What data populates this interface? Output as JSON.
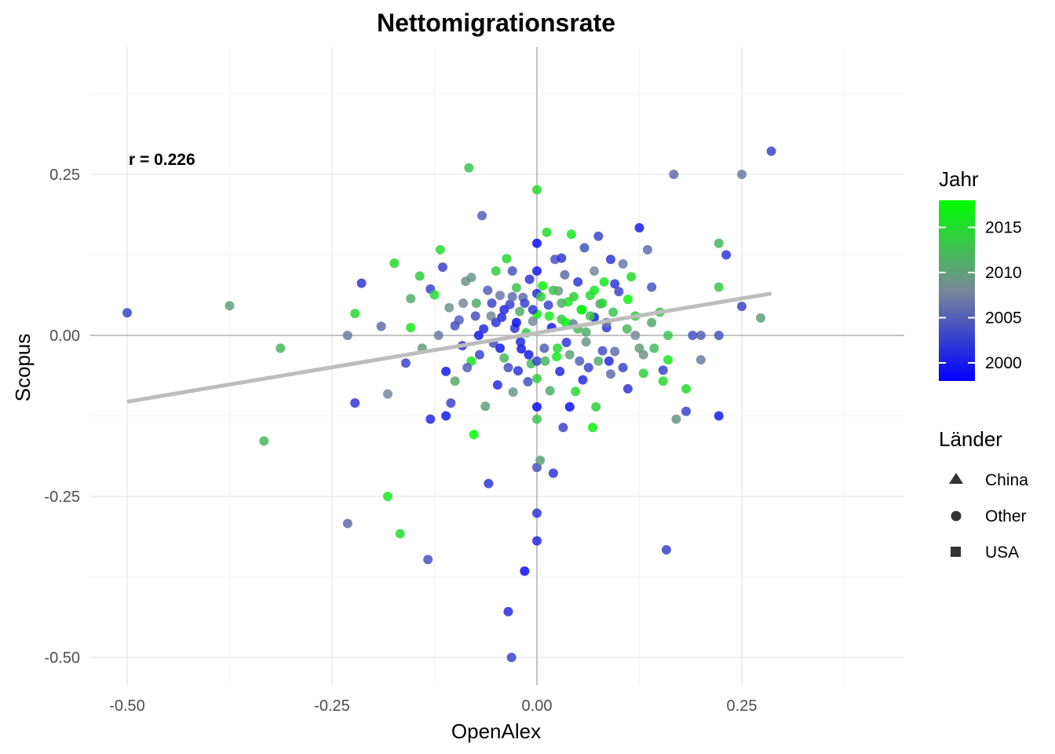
{
  "chart_data": {
    "type": "scatter",
    "title": "Nettomigrationsrate",
    "xlabel": "OpenAlex",
    "ylabel": "Scopus",
    "xlim": [
      -0.55,
      0.45
    ],
    "ylim": [
      -0.54,
      0.38
    ],
    "x_ticks": [
      -0.5,
      -0.25,
      0.0,
      0.25
    ],
    "y_ticks": [
      0.25,
      0.0,
      -0.25,
      -0.5
    ],
    "x_tick_labels": [
      "-0.50",
      "-0.25",
      "0.00",
      "0.25"
    ],
    "y_tick_labels": [
      "0.25",
      "0.00",
      "-0.25",
      "-0.50"
    ],
    "grid": true,
    "annotation": "r = 0.226",
    "trend_line": {
      "x": [
        -0.5,
        0.286
      ],
      "y": [
        -0.103,
        0.065
      ]
    },
    "color_legend": {
      "title": "Jahr",
      "ticks": [
        2000,
        2005,
        2010,
        2015
      ],
      "range": [
        1998,
        2018
      ],
      "low_color": "#0000ff",
      "mid_color": "#778899",
      "high_color": "#00ff00"
    },
    "shape_legend": {
      "title": "Länder",
      "items": [
        {
          "label": "China",
          "shape": "triangle"
        },
        {
          "label": "Other",
          "shape": "circle"
        },
        {
          "label": "USA",
          "shape": "square"
        }
      ]
    },
    "points": [
      {
        "x": -0.5,
        "y": 0.035,
        "year": 2003
      },
      {
        "x": -0.375,
        "y": 0.046,
        "year": 2010
      },
      {
        "x": -0.333,
        "y": -0.164,
        "year": 2012
      },
      {
        "x": -0.313,
        "y": -0.02,
        "year": 2012
      },
      {
        "x": -0.231,
        "y": -0.292,
        "year": 2006
      },
      {
        "x": -0.231,
        "y": 0.0,
        "year": 2007
      },
      {
        "x": -0.222,
        "y": 0.034,
        "year": 2015
      },
      {
        "x": -0.222,
        "y": -0.105,
        "year": 2002
      },
      {
        "x": -0.214,
        "y": 0.081,
        "year": 2002
      },
      {
        "x": -0.182,
        "y": -0.25,
        "year": 2016
      },
      {
        "x": -0.182,
        "y": -0.091,
        "year": 2008
      },
      {
        "x": -0.19,
        "y": 0.014,
        "year": 2006
      },
      {
        "x": -0.174,
        "y": 0.112,
        "year": 2015
      },
      {
        "x": -0.167,
        "y": -0.308,
        "year": 2015
      },
      {
        "x": -0.16,
        "y": -0.043,
        "year": 2003
      },
      {
        "x": -0.154,
        "y": 0.057,
        "year": 2011
      },
      {
        "x": -0.154,
        "y": 0.012,
        "year": 2016
      },
      {
        "x": -0.143,
        "y": 0.092,
        "year": 2014
      },
      {
        "x": -0.133,
        "y": -0.348,
        "year": 2004
      },
      {
        "x": -0.13,
        "y": 0.072,
        "year": 2003
      },
      {
        "x": -0.13,
        "y": -0.13,
        "year": 2001
      },
      {
        "x": -0.125,
        "y": 0.063,
        "year": 2015
      },
      {
        "x": -0.118,
        "y": 0.133,
        "year": 2015
      },
      {
        "x": -0.115,
        "y": 0.106,
        "year": 2003
      },
      {
        "x": -0.111,
        "y": -0.056,
        "year": 2000
      },
      {
        "x": -0.111,
        "y": -0.125,
        "year": 2000
      },
      {
        "x": -0.107,
        "y": 0.043,
        "year": 2009
      },
      {
        "x": -0.105,
        "y": -0.105,
        "year": 2003
      },
      {
        "x": -0.1,
        "y": -0.071,
        "year": 2011
      },
      {
        "x": -0.095,
        "y": 0.024,
        "year": 2005
      },
      {
        "x": -0.091,
        "y": -0.016,
        "year": 2002
      },
      {
        "x": -0.087,
        "y": 0.084,
        "year": 2009
      },
      {
        "x": -0.083,
        "y": 0.26,
        "year": 2013
      },
      {
        "x": -0.08,
        "y": -0.04,
        "year": 2016
      },
      {
        "x": -0.077,
        "y": -0.154,
        "year": 2018
      },
      {
        "x": -0.074,
        "y": 0.05,
        "year": 2011
      },
      {
        "x": -0.071,
        "y": 0.0,
        "year": 2000
      },
      {
        "x": -0.067,
        "y": 0.186,
        "year": 2005
      },
      {
        "x": -0.063,
        "y": -0.11,
        "year": 2010
      },
      {
        "x": -0.059,
        "y": -0.23,
        "year": 2002
      },
      {
        "x": -0.056,
        "y": 0.03,
        "year": 2008
      },
      {
        "x": -0.053,
        "y": -0.012,
        "year": 2004
      },
      {
        "x": -0.05,
        "y": 0.1,
        "year": 2014
      },
      {
        "x": -0.048,
        "y": -0.077,
        "year": 2001
      },
      {
        "x": -0.045,
        "y": 0.062,
        "year": 2007
      },
      {
        "x": -0.043,
        "y": 0.028,
        "year": 2001
      },
      {
        "x": -0.04,
        "y": -0.035,
        "year": 2012
      },
      {
        "x": -0.037,
        "y": 0.119,
        "year": 2015
      },
      {
        "x": -0.035,
        "y": -0.429,
        "year": 2001
      },
      {
        "x": -0.033,
        "y": 0.048,
        "year": 2003
      },
      {
        "x": -0.031,
        "y": -0.5,
        "year": 2003
      },
      {
        "x": -0.029,
        "y": -0.088,
        "year": 2009
      },
      {
        "x": -0.027,
        "y": 0.011,
        "year": 2002
      },
      {
        "x": -0.025,
        "y": 0.074,
        "year": 2013
      },
      {
        "x": -0.023,
        "y": -0.055,
        "year": 2002
      },
      {
        "x": -0.021,
        "y": 0.037,
        "year": 2011
      },
      {
        "x": -0.019,
        "y": -0.021,
        "year": 2000
      },
      {
        "x": -0.017,
        "y": 0.059,
        "year": 2006
      },
      {
        "x": -0.015,
        "y": -0.366,
        "year": 1999
      },
      {
        "x": -0.013,
        "y": 0.004,
        "year": 2014
      },
      {
        "x": -0.011,
        "y": -0.072,
        "year": 2004
      },
      {
        "x": -0.009,
        "y": 0.087,
        "year": 2002
      },
      {
        "x": -0.007,
        "y": -0.044,
        "year": 2012
      },
      {
        "x": -0.005,
        "y": 0.022,
        "year": 2008
      },
      {
        "x": 0.0,
        "y": 0.143,
        "year": 1999
      },
      {
        "x": 0.0,
        "y": 0.226,
        "year": 2015
      },
      {
        "x": 0.0,
        "y": -0.205,
        "year": 2004
      },
      {
        "x": 0.0,
        "y": -0.276,
        "year": 2002
      },
      {
        "x": 0.0,
        "y": -0.319,
        "year": 2001
      },
      {
        "x": 0.0,
        "y": -0.111,
        "year": 1999
      },
      {
        "x": 0.0,
        "y": -0.13,
        "year": 2013
      },
      {
        "x": 0.0,
        "y": 0.1,
        "year": 2000
      },
      {
        "x": 0.0,
        "y": 0.065,
        "year": 2001
      },
      {
        "x": 0.0,
        "y": -0.067,
        "year": 2014
      },
      {
        "x": 0.0,
        "y": 0.033,
        "year": 2017
      },
      {
        "x": 0.0,
        "y": -0.04,
        "year": 2003
      },
      {
        "x": 0.004,
        "y": -0.194,
        "year": 2010
      },
      {
        "x": 0.007,
        "y": 0.077,
        "year": 2017
      },
      {
        "x": 0.009,
        "y": -0.02,
        "year": 2005
      },
      {
        "x": 0.012,
        "y": 0.16,
        "year": 2015
      },
      {
        "x": 0.014,
        "y": 0.047,
        "year": 2003
      },
      {
        "x": 0.016,
        "y": -0.086,
        "year": 2011
      },
      {
        "x": 0.018,
        "y": 0.012,
        "year": 2000
      },
      {
        "x": 0.02,
        "y": -0.214,
        "year": 2002
      },
      {
        "x": 0.022,
        "y": 0.118,
        "year": 2004
      },
      {
        "x": 0.024,
        "y": -0.033,
        "year": 2016
      },
      {
        "x": 0.026,
        "y": 0.069,
        "year": 2009
      },
      {
        "x": 0.028,
        "y": -0.056,
        "year": 2001
      },
      {
        "x": 0.03,
        "y": 0.025,
        "year": 2013
      },
      {
        "x": 0.032,
        "y": -0.143,
        "year": 2003
      },
      {
        "x": 0.034,
        "y": 0.094,
        "year": 2006
      },
      {
        "x": 0.036,
        "y": -0.011,
        "year": 2002
      },
      {
        "x": 0.038,
        "y": 0.052,
        "year": 2016
      },
      {
        "x": 0.04,
        "y": -0.111,
        "year": 1999
      },
      {
        "x": 0.042,
        "y": 0.157,
        "year": 2016
      },
      {
        "x": 0.044,
        "y": 0.018,
        "year": 2007
      },
      {
        "x": 0.047,
        "y": -0.087,
        "year": 2015
      },
      {
        "x": 0.05,
        "y": 0.083,
        "year": 2002
      },
      {
        "x": 0.052,
        "y": -0.04,
        "year": 2005
      },
      {
        "x": 0.054,
        "y": 0.04,
        "year": 2012
      },
      {
        "x": 0.056,
        "y": -0.069,
        "year": 2001
      },
      {
        "x": 0.058,
        "y": 0.136,
        "year": 2004
      },
      {
        "x": 0.06,
        "y": 0.005,
        "year": 2011
      },
      {
        "x": 0.063,
        "y": -0.05,
        "year": 2003
      },
      {
        "x": 0.065,
        "y": 0.062,
        "year": 2015
      },
      {
        "x": 0.068,
        "y": -0.143,
        "year": 2017
      },
      {
        "x": 0.07,
        "y": 0.028,
        "year": 2000
      },
      {
        "x": 0.072,
        "y": -0.111,
        "year": 2014
      },
      {
        "x": 0.075,
        "y": 0.154,
        "year": 2003
      },
      {
        "x": 0.077,
        "y": 0.049,
        "year": 2009
      },
      {
        "x": 0.08,
        "y": -0.024,
        "year": 2004
      },
      {
        "x": 0.082,
        "y": 0.083,
        "year": 2016
      },
      {
        "x": 0.085,
        "y": 0.012,
        "year": 2002
      },
      {
        "x": 0.088,
        "y": -0.04,
        "year": 2001
      },
      {
        "x": 0.09,
        "y": 0.118,
        "year": 2002
      },
      {
        "x": 0.093,
        "y": 0.036,
        "year": 2013
      },
      {
        "x": 0.095,
        "y": -0.025,
        "year": 2006
      },
      {
        "x": 0.1,
        "y": 0.068,
        "year": 2003
      },
      {
        "x": 0.105,
        "y": 0.111,
        "year": 2007
      },
      {
        "x": 0.105,
        "y": -0.05,
        "year": 2003
      },
      {
        "x": 0.111,
        "y": 0.056,
        "year": 2017
      },
      {
        "x": 0.111,
        "y": -0.083,
        "year": 2002
      },
      {
        "x": 0.115,
        "y": 0.091,
        "year": 2015
      },
      {
        "x": 0.12,
        "y": 0.0,
        "year": 2008
      },
      {
        "x": 0.125,
        "y": 0.167,
        "year": 2000
      },
      {
        "x": 0.125,
        "y": -0.02,
        "year": 2010
      },
      {
        "x": 0.13,
        "y": -0.059,
        "year": 2014
      },
      {
        "x": 0.135,
        "y": 0.133,
        "year": 2006
      },
      {
        "x": 0.14,
        "y": 0.075,
        "year": 2004
      },
      {
        "x": 0.143,
        "y": -0.02,
        "year": 2012
      },
      {
        "x": 0.15,
        "y": 0.036,
        "year": 2013
      },
      {
        "x": 0.154,
        "y": -0.071,
        "year": 2015
      },
      {
        "x": 0.154,
        "y": -0.054,
        "year": 2003
      },
      {
        "x": 0.158,
        "y": -0.333,
        "year": 2003
      },
      {
        "x": 0.16,
        "y": -0.038,
        "year": 2016
      },
      {
        "x": 0.16,
        "y": 0.0,
        "year": 2013
      },
      {
        "x": 0.167,
        "y": 0.25,
        "year": 2006
      },
      {
        "x": 0.17,
        "y": -0.13,
        "year": 2009
      },
      {
        "x": 0.182,
        "y": -0.118,
        "year": 2003
      },
      {
        "x": 0.182,
        "y": -0.083,
        "year": 2015
      },
      {
        "x": 0.19,
        "y": 0.0,
        "year": 2004
      },
      {
        "x": 0.2,
        "y": -0.038,
        "year": 2007
      },
      {
        "x": 0.2,
        "y": 0.0,
        "year": 2005
      },
      {
        "x": 0.222,
        "y": 0.143,
        "year": 2012
      },
      {
        "x": 0.222,
        "y": 0.075,
        "year": 2013
      },
      {
        "x": 0.222,
        "y": -0.125,
        "year": 2000
      },
      {
        "x": 0.222,
        "y": 0.0,
        "year": 2004
      },
      {
        "x": 0.231,
        "y": 0.125,
        "year": 2002
      },
      {
        "x": 0.25,
        "y": 0.25,
        "year": 2007
      },
      {
        "x": 0.25,
        "y": 0.045,
        "year": 2003
      },
      {
        "x": 0.273,
        "y": 0.027,
        "year": 2010
      },
      {
        "x": 0.286,
        "y": 0.286,
        "year": 2003
      },
      {
        "x": -0.06,
        "y": 0.07,
        "year": 2005
      },
      {
        "x": -0.055,
        "y": 0.05,
        "year": 2003
      },
      {
        "x": -0.05,
        "y": 0.02,
        "year": 2002
      },
      {
        "x": -0.045,
        "y": -0.02,
        "year": 2000
      },
      {
        "x": -0.04,
        "y": 0.04,
        "year": 2001
      },
      {
        "x": -0.035,
        "y": -0.05,
        "year": 2004
      },
      {
        "x": -0.03,
        "y": 0.06,
        "year": 2006
      },
      {
        "x": -0.025,
        "y": 0.02,
        "year": 1999
      },
      {
        "x": -0.02,
        "y": -0.01,
        "year": 2001
      },
      {
        "x": -0.015,
        "y": 0.05,
        "year": 2003
      },
      {
        "x": -0.01,
        "y": -0.03,
        "year": 2000
      },
      {
        "x": -0.005,
        "y": 0.04,
        "year": 2002
      },
      {
        "x": 0.005,
        "y": 0.06,
        "year": 2014
      },
      {
        "x": 0.01,
        "y": -0.04,
        "year": 2012
      },
      {
        "x": 0.015,
        "y": 0.03,
        "year": 2016
      },
      {
        "x": 0.02,
        "y": 0.07,
        "year": 2013
      },
      {
        "x": 0.025,
        "y": -0.02,
        "year": 2015
      },
      {
        "x": 0.03,
        "y": 0.05,
        "year": 2011
      },
      {
        "x": 0.035,
        "y": 0.02,
        "year": 2017
      },
      {
        "x": 0.04,
        "y": -0.03,
        "year": 2010
      },
      {
        "x": 0.045,
        "y": 0.06,
        "year": 2014
      },
      {
        "x": 0.05,
        "y": 0.01,
        "year": 2012
      },
      {
        "x": 0.055,
        "y": 0.04,
        "year": 2018
      },
      {
        "x": 0.06,
        "y": -0.01,
        "year": 2009
      },
      {
        "x": 0.065,
        "y": 0.03,
        "year": 2013
      },
      {
        "x": 0.07,
        "y": 0.07,
        "year": 2016
      },
      {
        "x": 0.075,
        "y": -0.04,
        "year": 2011
      },
      {
        "x": 0.08,
        "y": 0.05,
        "year": 2015
      },
      {
        "x": -0.075,
        "y": 0.03,
        "year": 2004
      },
      {
        "x": -0.07,
        "y": -0.03,
        "year": 2003
      },
      {
        "x": -0.065,
        "y": 0.01,
        "year": 2001
      },
      {
        "x": -0.085,
        "y": -0.05,
        "year": 2005
      },
      {
        "x": -0.09,
        "y": 0.05,
        "year": 2008
      },
      {
        "x": 0.085,
        "y": 0.02,
        "year": 2007
      },
      {
        "x": 0.09,
        "y": -0.06,
        "year": 2006
      },
      {
        "x": 0.095,
        "y": 0.08,
        "year": 2002
      },
      {
        "x": -0.1,
        "y": 0.015,
        "year": 2004
      },
      {
        "x": -0.12,
        "y": 0.0,
        "year": 2007
      },
      {
        "x": -0.14,
        "y": -0.02,
        "year": 2010
      },
      {
        "x": 0.11,
        "y": 0.01,
        "year": 2012
      },
      {
        "x": 0.12,
        "y": 0.03,
        "year": 2014
      },
      {
        "x": 0.13,
        "y": -0.03,
        "year": 2009
      },
      {
        "x": 0.14,
        "y": 0.02,
        "year": 2011
      },
      {
        "x": -0.08,
        "y": 0.09,
        "year": 2009
      },
      {
        "x": 0.07,
        "y": 0.1,
        "year": 2008
      },
      {
        "x": -0.03,
        "y": 0.1,
        "year": 2004
      },
      {
        "x": 0.03,
        "y": 0.12,
        "year": 2002
      }
    ]
  }
}
